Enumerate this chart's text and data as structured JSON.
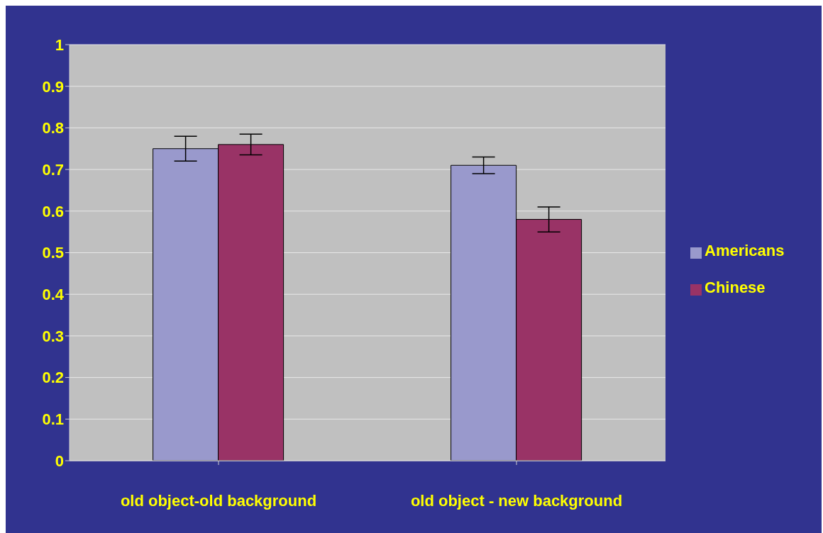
{
  "chart_data": {
    "type": "bar",
    "categories": [
      "old object-old background",
      "old object - new background"
    ],
    "series": [
      {
        "name": "Americans",
        "color": "#9999cc",
        "values": [
          0.75,
          0.71
        ],
        "errors": [
          0.03,
          0.02
        ]
      },
      {
        "name": "Chinese",
        "color": "#993366",
        "values": [
          0.76,
          0.58
        ],
        "errors": [
          0.025,
          0.03
        ]
      }
    ],
    "ylim": [
      0,
      1
    ],
    "yticks": [
      0,
      0.1,
      0.2,
      0.3,
      0.4,
      0.5,
      0.6,
      0.7,
      0.8,
      0.9,
      1
    ],
    "grid": "y",
    "legend": "right"
  }
}
